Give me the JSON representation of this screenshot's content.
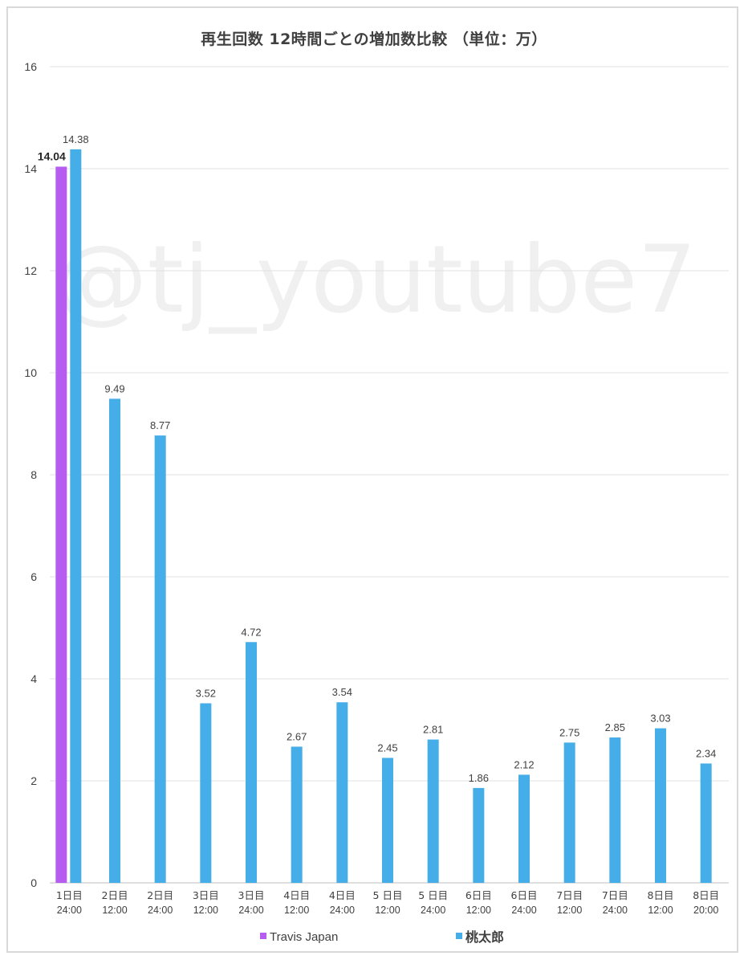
{
  "watermark": "@tj_youtube7",
  "colors": {
    "travis": "#b65cf0",
    "momotaro": "#45ade8",
    "grid": "#e1e1e1",
    "axis_text": "#404040"
  },
  "chart_data": {
    "type": "bar",
    "title": "再生回数 12時間ごとの増加数比較 （単位：万）",
    "xlabel": "",
    "ylabel": "",
    "ylim": [
      0,
      16
    ],
    "y_ticks": [
      "0",
      "2",
      "4",
      "6",
      "8",
      "10",
      "12",
      "14",
      "16"
    ],
    "grid": true,
    "legend_position": "bottom",
    "categories": [
      [
        "1日目",
        "24:00"
      ],
      [
        "2日目",
        "12:00"
      ],
      [
        "2日目",
        "24:00"
      ],
      [
        "3日目",
        "12:00"
      ],
      [
        "3日目",
        "24:00"
      ],
      [
        "4日目",
        "12:00"
      ],
      [
        "4日目",
        "24:00"
      ],
      [
        "5 日目",
        "12:00"
      ],
      [
        "5 日目",
        "24:00"
      ],
      [
        "6日目",
        "12:00"
      ],
      [
        "6日目",
        "24:00"
      ],
      [
        "7日目",
        "12:00"
      ],
      [
        "7日目",
        "24:00"
      ],
      [
        "8日目",
        "12:00"
      ],
      [
        "8日目",
        "20:00"
      ]
    ],
    "series": [
      {
        "name": "Travis Japan",
        "values": [
          14.04,
          null,
          null,
          null,
          null,
          null,
          null,
          null,
          null,
          null,
          null,
          null,
          null,
          null,
          null
        ],
        "labels": [
          "14.04",
          "",
          "",
          "",
          "",
          "",
          "",
          "",
          "",
          "",
          "",
          "",
          "",
          "",
          ""
        ]
      },
      {
        "name": "桃太郎",
        "values": [
          14.38,
          9.49,
          8.77,
          3.52,
          4.72,
          2.67,
          3.54,
          2.45,
          2.81,
          1.86,
          2.12,
          2.75,
          2.85,
          3.03,
          2.34
        ],
        "labels": [
          "14.38",
          "9.49",
          "8.77",
          "3.52",
          "4.72",
          "2.67",
          "3.54",
          "2.45",
          "2.81",
          "1.86",
          "2.12",
          "2.75",
          "2.85",
          "3.03",
          "2.34"
        ]
      }
    ]
  }
}
